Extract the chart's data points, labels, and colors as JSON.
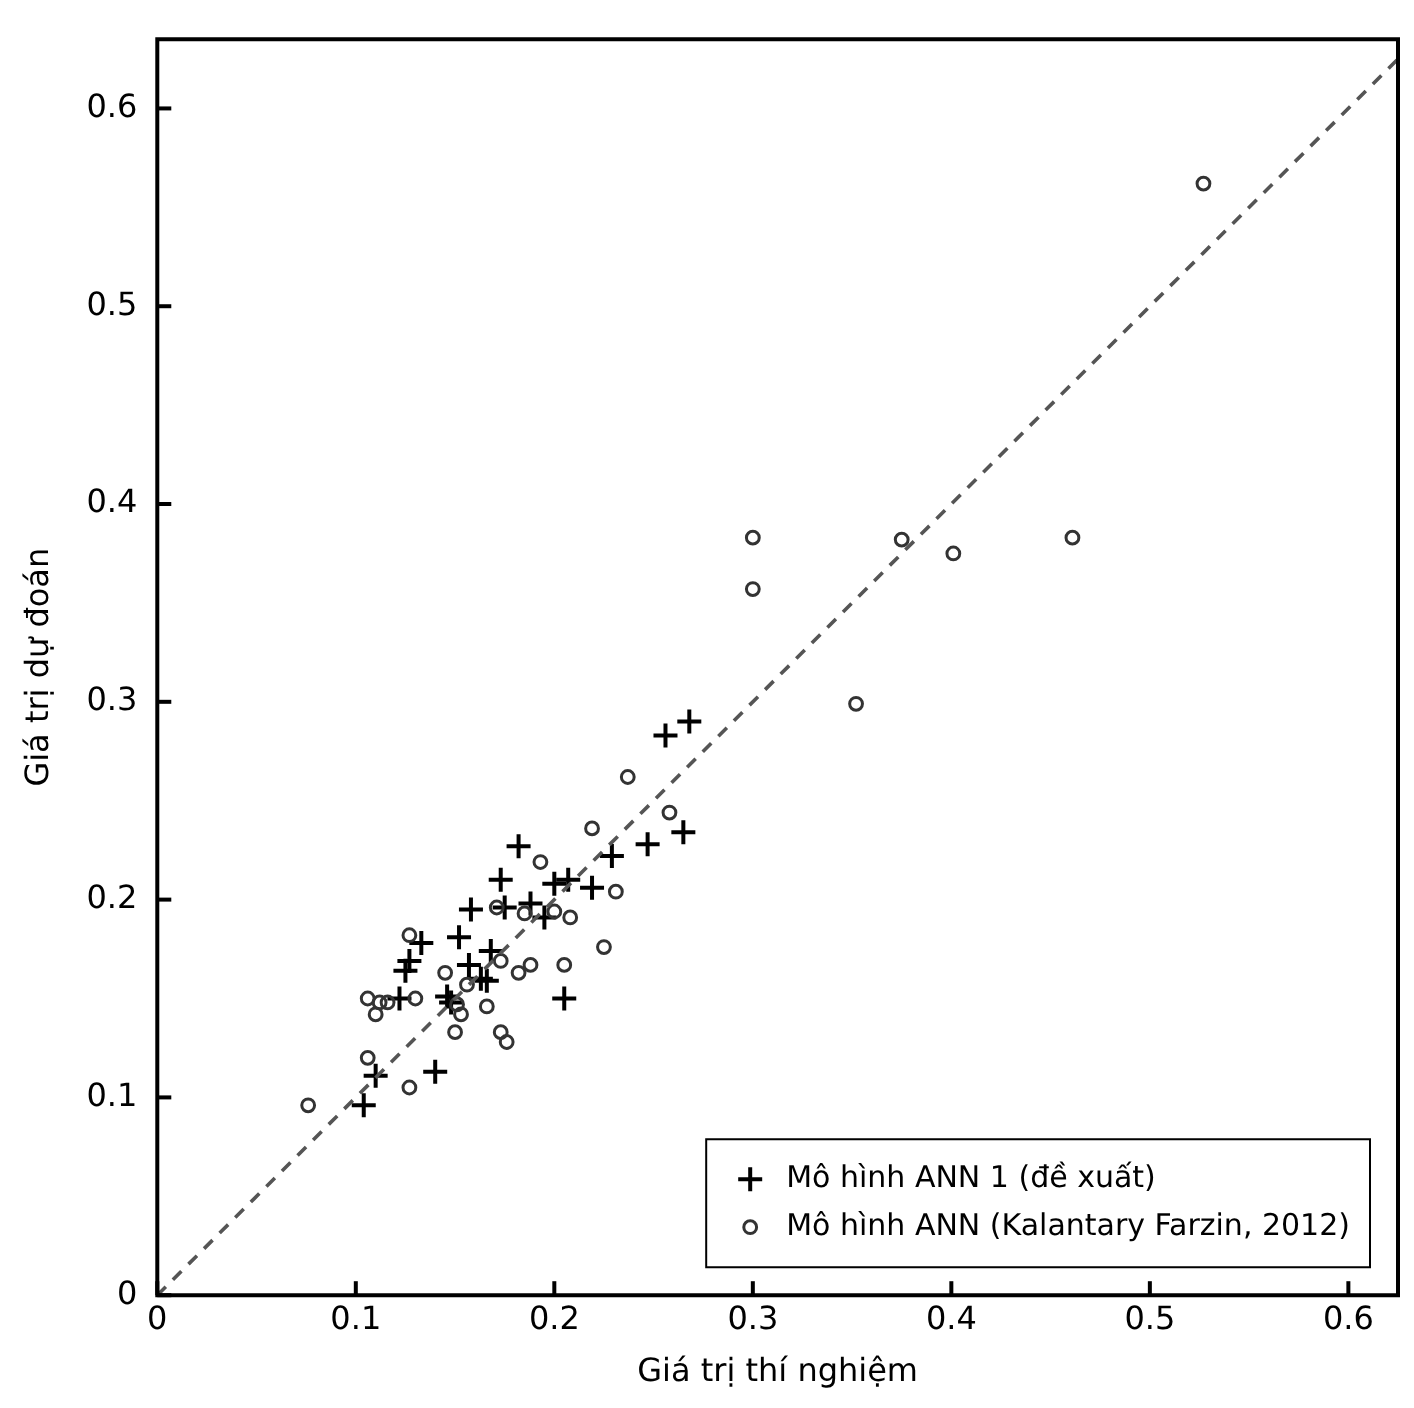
{
  "chart_data": {
    "type": "scatter",
    "xlabel": "Giá trị thí nghiệm",
    "ylabel": "Giá trị dự đoán",
    "xlim": [
      0,
      0.625
    ],
    "ylim": [
      0,
      0.635
    ],
    "xticks": [
      0,
      0.1,
      0.2,
      0.3,
      0.4,
      0.5,
      0.6
    ],
    "yticks": [
      0,
      0.1,
      0.2,
      0.3,
      0.4,
      0.5,
      0.6
    ],
    "grid": false,
    "legend": "bottom right",
    "series": [
      {
        "name": "Mô hình ANN 1 (đề xuất)",
        "color": "#000000",
        "marker": "cross",
        "x": [
          0.104,
          0.11,
          0.14,
          0.122,
          0.125,
          0.127,
          0.133,
          0.152,
          0.146,
          0.148,
          0.157,
          0.168,
          0.163,
          0.166,
          0.205,
          0.158,
          0.173,
          0.182,
          0.175,
          0.188,
          0.195,
          0.2,
          0.207,
          0.219,
          0.229,
          0.247,
          0.265,
          0.256,
          0.268
        ],
        "values": [
          0.096,
          0.111,
          0.113,
          0.15,
          0.164,
          0.169,
          0.178,
          0.181,
          0.151,
          0.148,
          0.167,
          0.174,
          0.16,
          0.159,
          0.15,
          0.195,
          0.21,
          0.227,
          0.196,
          0.198,
          0.191,
          0.208,
          0.21,
          0.206,
          0.222,
          0.228,
          0.234,
          0.283,
          0.29
        ]
      },
      {
        "name": "Mô hình ANN (Kalantary Farzin, 2012)",
        "color": "#333333",
        "marker": "circle",
        "x": [
          0.076,
          0.106,
          0.127,
          0.106,
          0.112,
          0.11,
          0.116,
          0.13,
          0.127,
          0.145,
          0.156,
          0.151,
          0.153,
          0.15,
          0.166,
          0.173,
          0.176,
          0.173,
          0.182,
          0.188,
          0.171,
          0.185,
          0.193,
          0.2,
          0.208,
          0.205,
          0.225,
          0.231,
          0.219,
          0.237,
          0.258,
          0.3,
          0.3,
          0.375,
          0.401,
          0.461,
          0.352,
          0.527
        ],
        "values": [
          0.096,
          0.12,
          0.105,
          0.15,
          0.148,
          0.142,
          0.148,
          0.15,
          0.182,
          0.163,
          0.157,
          0.147,
          0.142,
          0.133,
          0.146,
          0.133,
          0.128,
          0.169,
          0.163,
          0.167,
          0.196,
          0.193,
          0.219,
          0.194,
          0.191,
          0.167,
          0.176,
          0.204,
          0.236,
          0.262,
          0.244,
          0.383,
          0.357,
          0.382,
          0.375,
          0.383,
          0.299,
          0.562
        ]
      },
      {
        "type": "line",
        "color": "#555555",
        "line_style": "dashed",
        "marker": "none",
        "x": [
          0,
          0.625
        ],
        "values": [
          0,
          0.625
        ]
      }
    ]
  }
}
